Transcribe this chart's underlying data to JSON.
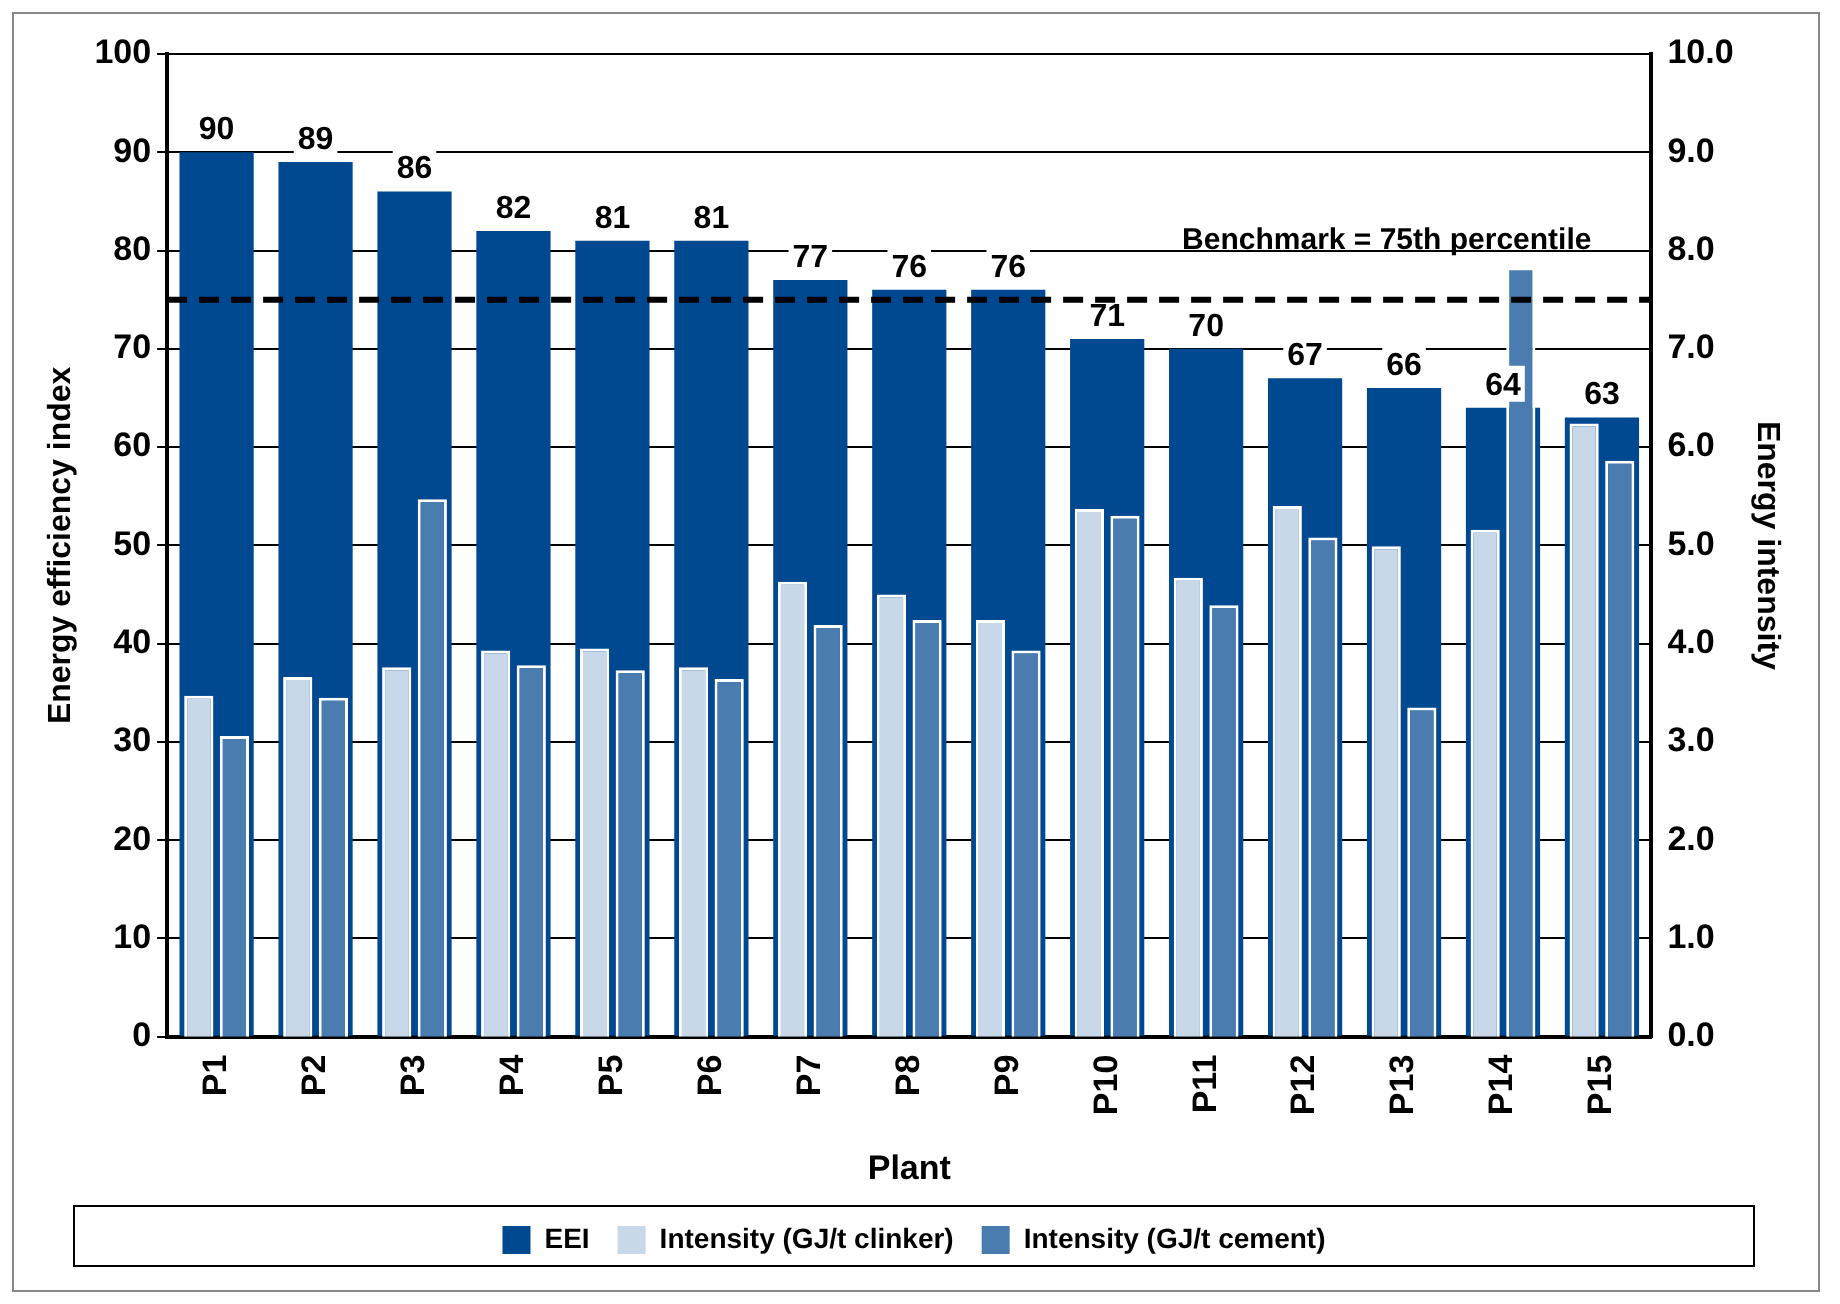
{
  "chart_data": {
    "type": "bar",
    "categories": [
      "P1",
      "P2",
      "P3",
      "P4",
      "P5",
      "P6",
      "P7",
      "P8",
      "P9",
      "P10",
      "P11",
      "P12",
      "P13",
      "P14",
      "P15"
    ],
    "xlabel": "Plant",
    "ylabel": "Energy efficiency index",
    "y2label": "Energy intensity",
    "series": [
      {
        "name": "EEI",
        "color": "#004890",
        "values": [
          90,
          89,
          86,
          82,
          81,
          81,
          77,
          76,
          76,
          71,
          70,
          67,
          66,
          64,
          63
        ],
        "value_labels": [
          "90",
          "89",
          "86",
          "82",
          "81",
          "81",
          "77",
          "76",
          "76",
          "71",
          "70",
          "67",
          "66",
          "64",
          "63"
        ]
      },
      {
        "name": "Intensity (GJ/t clinker)",
        "color": "#c8d8e8",
        "axis": "y2",
        "values": [
          3.47,
          3.66,
          3.76,
          3.93,
          3.95,
          3.76,
          4.63,
          4.5,
          4.24,
          5.37,
          4.67,
          5.4,
          4.99,
          5.16,
          6.24
        ]
      },
      {
        "name": "Intensity (GJ/t cement)",
        "color": "#4a7cb0",
        "axis": "y2",
        "values": [
          3.06,
          3.45,
          5.47,
          3.78,
          3.73,
          3.64,
          4.19,
          4.24,
          3.93,
          5.3,
          4.39,
          5.08,
          3.35,
          7.83,
          5.86
        ]
      }
    ],
    "ylim": [
      0,
      100
    ],
    "yticks": [
      0,
      10,
      20,
      30,
      40,
      50,
      60,
      70,
      80,
      90,
      100
    ],
    "y2lim": [
      0,
      10
    ],
    "y2ticks": [
      {
        "value": 0,
        "label": "0.0"
      },
      {
        "value": 1,
        "label": "1.0"
      },
      {
        "value": 2,
        "label": "2.0"
      },
      {
        "value": 3,
        "label": "3.0"
      },
      {
        "value": 4,
        "label": "4.0"
      },
      {
        "value": 5,
        "label": "5.0"
      },
      {
        "value": 6,
        "label": "6.0"
      },
      {
        "value": 7,
        "label": "7.0"
      },
      {
        "value": 8,
        "label": "8.0"
      },
      {
        "value": 9,
        "label": "9.0"
      },
      {
        "value": 10,
        "label": "10.0"
      }
    ],
    "ref_lines": [
      {
        "axis": "y",
        "value": 75,
        "label": "Benchmark = 75th percentile",
        "line_style": "dashed",
        "color": "#000000"
      }
    ],
    "grid": "y",
    "legend": "bottom"
  }
}
